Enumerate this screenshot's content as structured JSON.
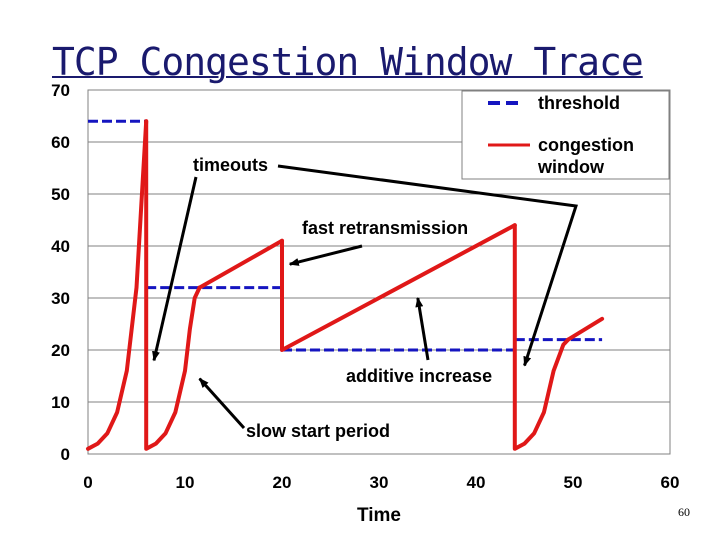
{
  "slide": {
    "title": "TCP Congestion Window Trace",
    "page_number": "60"
  },
  "chart_data": {
    "type": "line",
    "title": "TCP Congestion Window Trace",
    "xlabel": "Time",
    "ylabel": "",
    "xlim": [
      0,
      60
    ],
    "ylim": [
      0,
      70
    ],
    "xticks": [
      0,
      10,
      20,
      30,
      40,
      50,
      60
    ],
    "yticks": [
      0,
      10,
      20,
      30,
      40,
      50,
      60,
      70
    ],
    "grid": "horizontal",
    "legend_position": "top-right",
    "colors": {
      "threshold": "#1515c0",
      "congestion_window": "#e01818",
      "annotation": "#000000"
    },
    "series": [
      {
        "name": "threshold",
        "style": "dashed",
        "segments": [
          {
            "x": [
              0,
              6
            ],
            "y": [
              64,
              64
            ]
          },
          {
            "x": [
              6,
              20
            ],
            "y": [
              32,
              32
            ]
          },
          {
            "x": [
              20,
              44
            ],
            "y": [
              20,
              20
            ]
          },
          {
            "x": [
              44,
              53
            ],
            "y": [
              22,
              22
            ]
          }
        ]
      },
      {
        "name": "congestion window",
        "style": "solid",
        "segments": [
          {
            "x": [
              0,
              1,
              2,
              3,
              4,
              5,
              5.5,
              6
            ],
            "y": [
              1,
              2,
              4,
              8,
              16,
              32,
              48,
              64
            ]
          },
          {
            "x": [
              6,
              6,
              7,
              8,
              9,
              10,
              10.5,
              11,
              11.5
            ],
            "y": [
              64,
              1,
              2,
              4,
              8,
              16,
              24,
              30,
              32
            ]
          },
          {
            "x": [
              11.5,
              20
            ],
            "y": [
              32,
              41
            ]
          },
          {
            "x": [
              20,
              20,
              44
            ],
            "y": [
              41,
              20,
              44
            ]
          },
          {
            "x": [
              44,
              44,
              45,
              46,
              47,
              48,
              49,
              49.5
            ],
            "y": [
              44,
              1,
              2,
              4,
              8,
              16,
              21,
              22
            ]
          },
          {
            "x": [
              49.5,
              53
            ],
            "y": [
              22,
              26
            ]
          }
        ]
      }
    ],
    "legend": [
      {
        "label": "threshold",
        "series": "threshold"
      },
      {
        "label": "congestion window",
        "series": "congestion window",
        "lines": [
          "congestion",
          "window"
        ]
      }
    ],
    "annotations": [
      {
        "text": "timeouts",
        "arrow_targets": [
          [
            6.8,
            18
          ],
          [
            45,
            17
          ]
        ],
        "text_anchor_data": [
          11,
          53
        ]
      },
      {
        "text": "fast retransmission",
        "arrow_targets": [
          [
            20.8,
            36.5
          ]
        ]
      },
      {
        "text": "additive increase",
        "arrow_targets": [
          [
            34,
            30
          ]
        ]
      },
      {
        "text": "slow start period",
        "arrow_targets": [
          [
            11.5,
            14.5
          ]
        ]
      }
    ]
  }
}
